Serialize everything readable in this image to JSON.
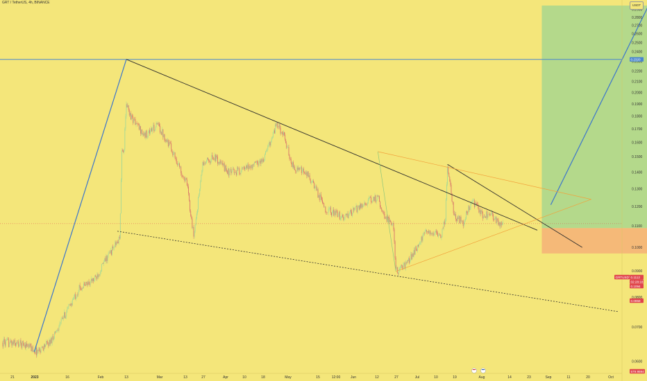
{
  "header": {
    "symbol_title": "GRT / TetherUS, 4h, BINANCE",
    "currency": "USDT"
  },
  "colors": {
    "background": "#f4e67a",
    "candle_up": "#a6d996",
    "candle_down": "#d9776a",
    "trendline": "#2b2b2b",
    "blue_line": "#3b75cc",
    "orange_line": "#f2a13b",
    "target_zone": "#b4d98b",
    "stop_zone": "#f5b978",
    "price_tag": "#e0444c",
    "hline": "#4a86cf"
  },
  "chart_data": {
    "type": "candlestick",
    "title": "GRT / TetherUS, 4h, BINANCE",
    "yscale": "log",
    "ylim": [
      0.0585,
      0.2952
    ],
    "y_ticks": [
      "0.2900",
      "0.2800",
      "0.2700",
      "0.2600",
      "0.2500",
      "0.2400",
      "0.2300",
      "0.2200",
      "0.2100",
      "0.2000",
      "0.1900",
      "0.1800",
      "0.1700",
      "0.1600",
      "0.1500",
      "0.1400",
      "0.1300",
      "0.1200",
      "0.1100",
      "0.1000",
      "0.0900",
      "0.0800",
      "0.0700",
      "0.0600"
    ],
    "x_ticks": [
      "21",
      "2023",
      "16",
      "Feb",
      "13",
      "Mar",
      "13",
      "27",
      "Apr",
      "10",
      "18",
      "May",
      "15",
      "12:00",
      "Jun",
      "12",
      "27",
      "Jul",
      "10",
      "19",
      "Aug",
      "14",
      "23",
      "Sep",
      "11",
      "20",
      "Oct"
    ],
    "price_path": [
      [
        "2022-12-17",
        0.0653
      ],
      [
        "2022-12-27",
        0.0648
      ],
      [
        "2023-01-01",
        0.0627
      ],
      [
        "2023-01-07",
        0.0655
      ],
      [
        "2023-01-14",
        0.0745
      ],
      [
        "2023-01-20",
        0.0832
      ],
      [
        "2023-01-27",
        0.0868
      ],
      [
        "2023-02-01",
        0.095
      ],
      [
        "2023-02-07",
        0.104
      ],
      [
        "2023-02-08",
        0.152
      ],
      [
        "2023-02-09",
        0.157
      ],
      [
        "2023-02-10",
        0.19
      ],
      [
        "2023-02-12",
        0.18
      ],
      [
        "2023-02-18",
        0.165
      ],
      [
        "2023-02-24",
        0.173
      ],
      [
        "2023-03-02",
        0.156
      ],
      [
        "2023-03-09",
        0.1325
      ],
      [
        "2023-03-12",
        0.105
      ],
      [
        "2023-03-16",
        0.145
      ],
      [
        "2023-03-21",
        0.15
      ],
      [
        "2023-03-28",
        0.1395
      ],
      [
        "2023-04-04",
        0.142
      ],
      [
        "2023-04-12",
        0.148
      ],
      [
        "2023-04-18",
        0.174
      ],
      [
        "2023-04-21",
        0.165
      ],
      [
        "2023-04-25",
        0.144
      ],
      [
        "2023-05-02",
        0.138
      ],
      [
        "2023-05-10",
        0.1185
      ],
      [
        "2023-05-18",
        0.114
      ],
      [
        "2023-05-27",
        0.122
      ],
      [
        "2023-06-02",
        0.125
      ],
      [
        "2023-06-05",
        0.115
      ],
      [
        "2023-06-09",
        0.11
      ],
      [
        "2023-06-10",
        0.0898
      ],
      [
        "2023-06-15",
        0.093
      ],
      [
        "2023-06-20",
        0.101
      ],
      [
        "2023-06-24",
        0.108
      ],
      [
        "2023-06-30",
        0.105
      ],
      [
        "2023-07-02",
        0.114
      ],
      [
        "2023-07-03",
        0.145
      ],
      [
        "2023-07-06",
        0.115
      ],
      [
        "2023-07-10",
        0.112
      ],
      [
        "2023-07-14",
        0.123
      ],
      [
        "2023-07-19",
        0.115
      ],
      [
        "2023-07-22",
        0.117
      ],
      [
        "2023-07-27",
        0.1095
      ],
      [
        "2023-07-28",
        0.111
      ]
    ],
    "drawings": {
      "blue_impulse_up": [
        [
          "2022-12-31",
          0.0627
        ],
        [
          "2023-02-10",
          0.232
        ]
      ],
      "blue_projection": [
        [
          "2023-08-18",
          0.121
        ],
        [
          "2023-09-30",
          0.292
        ]
      ],
      "descending_resistance": [
        [
          "2023-02-10",
          0.232
        ],
        [
          "2023-08-12",
          0.108
        ]
      ],
      "inner_resistance": [
        [
          "2023-07-03",
          0.145
        ],
        [
          "2023-09-01",
          0.1
        ]
      ],
      "support_dotted": [
        [
          "2023-02-06",
          0.1075
        ],
        [
          "2023-09-17",
          0.075
        ]
      ],
      "orange_triangle_top": [
        [
          "2023-06-02",
          0.1535
        ],
        [
          "2023-09-05",
          0.124
        ]
      ],
      "orange_triangle_bottom": [
        [
          "2023-06-10",
          0.0898
        ],
        [
          "2023-09-05",
          0.124
        ]
      ],
      "orange_triangle_left": [
        [
          "2023-06-02",
          0.1535
        ],
        [
          "2023-06-10",
          0.0898
        ]
      ]
    },
    "horizontal_line": {
      "value": 0.232,
      "label": "0.2320"
    },
    "position": {
      "from": "2023-08-14",
      "to": "2023-10-01",
      "entry": 0.109,
      "target": 0.2952,
      "stop": 0.0973
    },
    "labels": {
      "symbol_tag": "GRTUSDT",
      "last_price": "0.1112",
      "countdown": "02:28:18",
      "current_box": "0.1094",
      "stop_label": "0.0958",
      "bottom_label": "579.9594"
    }
  }
}
